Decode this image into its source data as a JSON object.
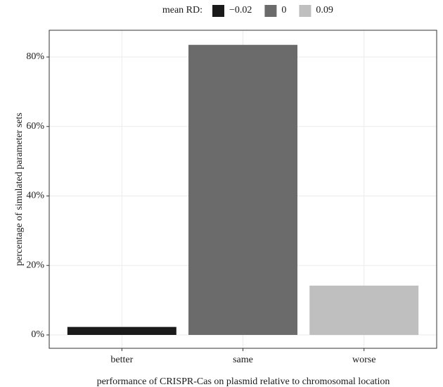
{
  "chart_data": {
    "type": "bar",
    "x_label": "performance of CRISPR-Cas on plasmid relative to chromosomal location",
    "y_label": "percentage of simulated parameter sets",
    "legend_title": "mean RD:",
    "legend_position": "top",
    "categories": [
      "better",
      "same",
      "worse"
    ],
    "series": [
      {
        "name": "−0.02",
        "color": "#1a1a1a",
        "values": [
          2.3,
          null,
          null
        ]
      },
      {
        "name": "0",
        "color": "#6b6b6b",
        "values": [
          null,
          83.5,
          null
        ]
      },
      {
        "name": "0.09",
        "color": "#bfbfbf",
        "values": [
          null,
          null,
          14.2
        ]
      }
    ],
    "ylim": [
      -3.85,
      87.7
    ],
    "yticks": [
      {
        "value": 0,
        "label": "0%"
      },
      {
        "value": 20,
        "label": "20%"
      },
      {
        "value": 40,
        "label": "40%"
      },
      {
        "value": 60,
        "label": "60%"
      },
      {
        "value": 80,
        "label": "80%"
      }
    ],
    "grid": true
  }
}
